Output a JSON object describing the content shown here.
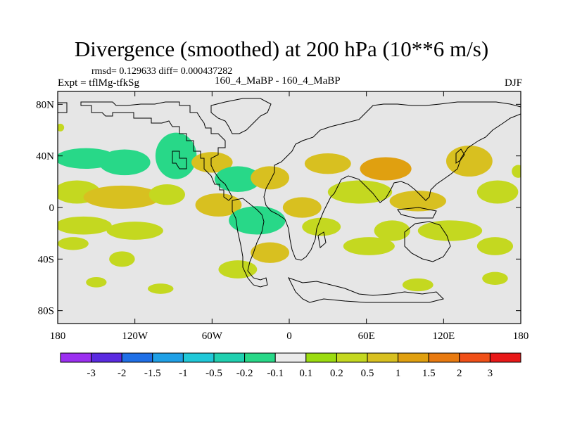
{
  "title": "Divergence (smoothed) at 200 hPa (10**6 m/s)",
  "stats_line": "rmsd= 0.129633 diff= 0.000437282",
  "left_label": "Expt = tflMg-tfkSg",
  "center_label": "160_4_MaBP - 160_4_MaBP",
  "right_label": "DJF",
  "map": {
    "lon_range": [
      -180,
      180
    ],
    "lat_range": [
      -90,
      90
    ],
    "y_ticks": [
      {
        "lat": 80,
        "label": "80N"
      },
      {
        "lat": 40,
        "label": "40N"
      },
      {
        "lat": 0,
        "label": "0"
      },
      {
        "lat": -40,
        "label": "40S"
      },
      {
        "lat": -80,
        "label": "80S"
      }
    ],
    "x_ticks": [
      {
        "lon": -180,
        "label": "180"
      },
      {
        "lon": -120,
        "label": "120W"
      },
      {
        "lon": -60,
        "label": "60W"
      },
      {
        "lon": 0,
        "label": "0"
      },
      {
        "lon": 60,
        "label": "60E"
      },
      {
        "lon": 120,
        "label": "120E"
      },
      {
        "lon": 180,
        "label": "180"
      }
    ],
    "background_color": "#e6e6e6"
  },
  "colorbar": {
    "colors": [
      "#9b2ff0",
      "#5a2ae0",
      "#1f6fe6",
      "#1fa0e6",
      "#20c8d8",
      "#20d0b0",
      "#28d888",
      "#ebebeb",
      "#9bdc10",
      "#c4d820",
      "#d8c020",
      "#e0a010",
      "#e87a10",
      "#f05018",
      "#e81818"
    ],
    "labels": [
      "-3",
      "-2",
      "-1.5",
      "-1",
      "-0.5",
      "-0.2",
      "-0.1",
      "0.1",
      "0.2",
      "0.5",
      "1",
      "1.5",
      "2",
      "3"
    ]
  },
  "blobs": [
    {
      "lon": -158,
      "lat": 38,
      "rx": 24,
      "ry": 8,
      "level": -0.2
    },
    {
      "lon": -128,
      "lat": 35,
      "rx": 20,
      "ry": 10,
      "level": -0.2
    },
    {
      "lon": -165,
      "lat": 12,
      "rx": 18,
      "ry": 9,
      "level": 0.2
    },
    {
      "lon": -130,
      "lat": 8,
      "rx": 30,
      "ry": 9,
      "level": 0.5
    },
    {
      "lon": -160,
      "lat": -14,
      "rx": 22,
      "ry": 7,
      "level": 0.2
    },
    {
      "lon": -120,
      "lat": -18,
      "rx": 22,
      "ry": 7,
      "level": 0.2
    },
    {
      "lon": -168,
      "lat": -28,
      "rx": 12,
      "ry": 5,
      "level": 0.2
    },
    {
      "lon": -88,
      "lat": 40,
      "rx": 16,
      "ry": 18,
      "level": -0.2
    },
    {
      "lon": -95,
      "lat": 10,
      "rx": 14,
      "ry": 8,
      "level": 0.2
    },
    {
      "lon": -60,
      "lat": 35,
      "rx": 16,
      "ry": 8,
      "level": 0.5
    },
    {
      "lon": -40,
      "lat": 22,
      "rx": 18,
      "ry": 10,
      "level": -0.2
    },
    {
      "lon": -55,
      "lat": 2,
      "rx": 18,
      "ry": 9,
      "level": 0.5
    },
    {
      "lon": -25,
      "lat": -10,
      "rx": 22,
      "ry": 11,
      "level": -0.2
    },
    {
      "lon": -15,
      "lat": 23,
      "rx": 15,
      "ry": 9,
      "level": 0.5
    },
    {
      "lon": 30,
      "lat": 34,
      "rx": 18,
      "ry": 8,
      "level": 0.5
    },
    {
      "lon": 55,
      "lat": 12,
      "rx": 25,
      "ry": 9,
      "level": 0.2
    },
    {
      "lon": 75,
      "lat": 30,
      "rx": 20,
      "ry": 9,
      "level": 1
    },
    {
      "lon": 10,
      "lat": 0,
      "rx": 15,
      "ry": 8,
      "level": 0.5
    },
    {
      "lon": 25,
      "lat": -15,
      "rx": 15,
      "ry": 7,
      "level": 0.2
    },
    {
      "lon": -15,
      "lat": -35,
      "rx": 15,
      "ry": 8,
      "level": 0.5
    },
    {
      "lon": 100,
      "lat": 5,
      "rx": 22,
      "ry": 8,
      "level": 0.5
    },
    {
      "lon": 140,
      "lat": 36,
      "rx": 18,
      "ry": 12,
      "level": 0.5
    },
    {
      "lon": 162,
      "lat": 12,
      "rx": 16,
      "ry": 9,
      "level": 0.2
    },
    {
      "lon": 125,
      "lat": -18,
      "rx": 25,
      "ry": 8,
      "level": 0.2
    },
    {
      "lon": 62,
      "lat": -30,
      "rx": 20,
      "ry": 7,
      "level": 0.2
    },
    {
      "lon": 80,
      "lat": -18,
      "rx": 14,
      "ry": 8,
      "level": 0.2
    },
    {
      "lon": 160,
      "lat": -30,
      "rx": 14,
      "ry": 7,
      "level": 0.2
    },
    {
      "lon": -130,
      "lat": -40,
      "rx": 10,
      "ry": 6,
      "level": 0.2
    },
    {
      "lon": -40,
      "lat": -48,
      "rx": 15,
      "ry": 7,
      "level": 0.2
    },
    {
      "lon": 100,
      "lat": -60,
      "rx": 12,
      "ry": 5,
      "level": 0.2
    },
    {
      "lon": 160,
      "lat": -55,
      "rx": 10,
      "ry": 5,
      "level": 0.2
    },
    {
      "lon": -150,
      "lat": -58,
      "rx": 8,
      "ry": 4,
      "level": 0.2
    },
    {
      "lon": -100,
      "lat": -63,
      "rx": 10,
      "ry": 4,
      "level": 0.2
    },
    {
      "lon": 178,
      "lat": 28,
      "rx": 5,
      "ry": 5,
      "level": 0.2
    },
    {
      "lon": -178,
      "lat": 62,
      "rx": 3,
      "ry": 3,
      "level": 0.2
    }
  ]
}
